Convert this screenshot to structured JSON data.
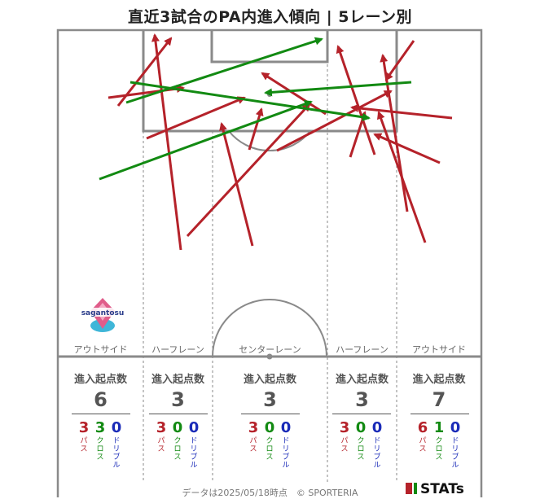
{
  "title": "直近3試合のPA内進入傾向 | 5レーン別",
  "lanes": [
    {
      "name": "アウトサイド",
      "stat_head": "進入起点数",
      "total": "6",
      "pass": "3",
      "cross": "3",
      "dribble": "0"
    },
    {
      "name": "ハーフレーン",
      "stat_head": "進入起点数",
      "total": "3",
      "pass": "3",
      "cross": "0",
      "dribble": "0"
    },
    {
      "name": "センターレーン",
      "stat_head": "進入起点数",
      "total": "3",
      "pass": "3",
      "cross": "0",
      "dribble": "0"
    },
    {
      "name": "ハーフレーン",
      "stat_head": "進入起点数",
      "total": "3",
      "pass": "3",
      "cross": "0",
      "dribble": "0"
    },
    {
      "name": "アウトサイド",
      "stat_head": "進入起点数",
      "total": "7",
      "pass": "6",
      "cross": "1",
      "dribble": "0"
    }
  ],
  "labels": {
    "pass": "パス",
    "cross": "クロス",
    "dribble": "ドリブル"
  },
  "colors": {
    "pass": "#b5222a",
    "cross": "#128a12",
    "dribble": "#1a2bb8",
    "pitch": "#8a8a8a"
  },
  "team_logo_text": "sagantosu",
  "footer": "データは2025/05/18時点　© SPORTERIA",
  "brand": "STATs"
}
